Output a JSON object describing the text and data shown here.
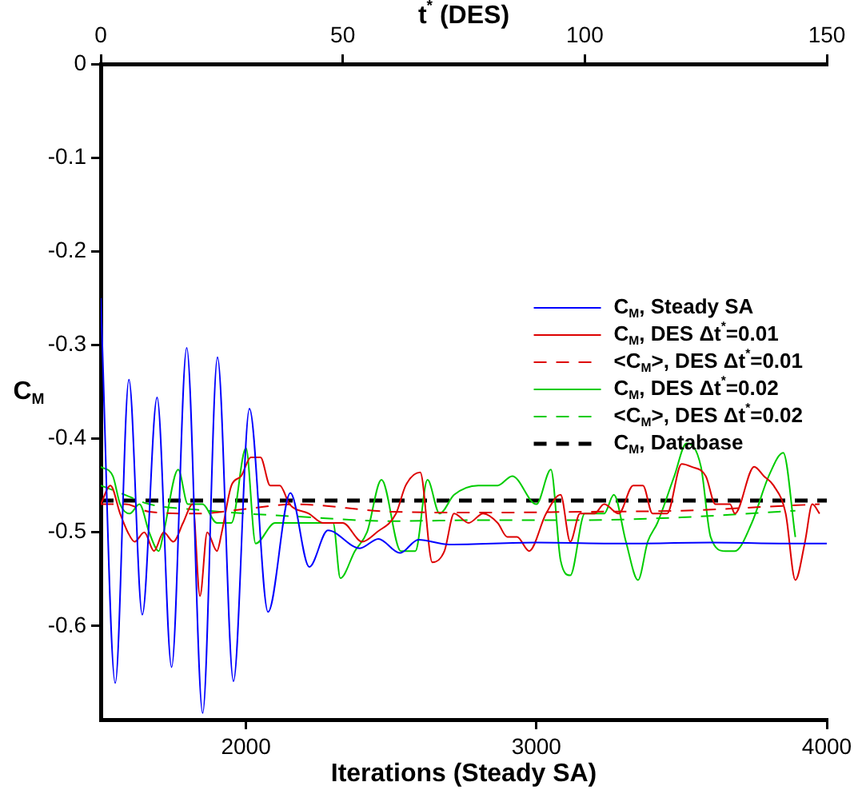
{
  "chart_data": {
    "type": "line",
    "xlabel": "Iterations (Steady SA)",
    "x2label": "t$^{*}$ (DES)",
    "ylabel": "C$_{M}$",
    "xlim": [
      1500,
      4000
    ],
    "xticks": [
      2000,
      3000,
      4000
    ],
    "x2lim": [
      0,
      150
    ],
    "x2ticks": [
      0,
      50,
      100,
      150
    ],
    "ylim": [
      -0.7,
      0
    ],
    "yticks": [
      0,
      -0.1,
      -0.2,
      -0.3,
      -0.4,
      -0.5,
      -0.6
    ],
    "grid": false,
    "legend": "right",
    "marker": "none",
    "series": [
      {
        "name": "C$_{M}$, Steady SA",
        "color": "#0000ff",
        "line_style": "solid",
        "x": [
          1500,
          1550,
          1597,
          1643,
          1694,
          1744,
          1796,
          1851,
          1902,
          1957,
          2012,
          2076,
          2153,
          2218,
          2282,
          2392,
          2456,
          2530,
          2594,
          2700,
          3000,
          3300,
          3600,
          3900,
          4000
        ],
        "values": [
          -0.25,
          -0.661,
          -0.337,
          -0.588,
          -0.356,
          -0.644,
          -0.303,
          -0.693,
          -0.313,
          -0.659,
          -0.368,
          -0.585,
          -0.458,
          -0.537,
          -0.498,
          -0.517,
          -0.507,
          -0.522,
          -0.508,
          -0.513,
          -0.511,
          -0.512,
          -0.511,
          -0.512,
          -0.512
        ]
      },
      {
        "name": "C$_{M}$, DES Δt$^{*}$=0.01",
        "color": "#dd0000",
        "line_style": "solid",
        "axis": "x2",
        "x": [
          0,
          2,
          4,
          5.6,
          7,
          9,
          11,
          13,
          15,
          17,
          19,
          20.5,
          22,
          24,
          25,
          27,
          29,
          31,
          33,
          35,
          37,
          39,
          43,
          46,
          50,
          54,
          57,
          61,
          63,
          66,
          68.5,
          71,
          73,
          76,
          79,
          82,
          84,
          86,
          88.5,
          92,
          95,
          97,
          99,
          102,
          104,
          107,
          110,
          112,
          114,
          117,
          120,
          122,
          125,
          127,
          130,
          131,
          135,
          137,
          139,
          141.5,
          143.5,
          145.5,
          147,
          148.5
        ],
        "values": [
          -0.47,
          -0.45,
          -0.48,
          -0.5,
          -0.51,
          -0.5,
          -0.52,
          -0.5,
          -0.51,
          -0.49,
          -0.47,
          -0.568,
          -0.5,
          -0.52,
          -0.5,
          -0.45,
          -0.44,
          -0.42,
          -0.42,
          -0.45,
          -0.45,
          -0.47,
          -0.48,
          -0.49,
          -0.49,
          -0.51,
          -0.5,
          -0.48,
          -0.45,
          -0.436,
          -0.532,
          -0.52,
          -0.48,
          -0.49,
          -0.48,
          -0.49,
          -0.505,
          -0.505,
          -0.52,
          -0.48,
          -0.46,
          -0.51,
          -0.48,
          -0.48,
          -0.47,
          -0.48,
          -0.45,
          -0.45,
          -0.48,
          -0.48,
          -0.427,
          -0.43,
          -0.44,
          -0.47,
          -0.47,
          -0.48,
          -0.43,
          -0.44,
          -0.45,
          -0.48,
          -0.551,
          -0.51,
          -0.47,
          -0.48
        ]
      },
      {
        "name": "<C$_{M}$>, DES Δt$^{*}$=0.01",
        "color": "#dd0000",
        "line_style": "dashed",
        "axis": "x2",
        "x": [
          0,
          5,
          10,
          20,
          30,
          40,
          60,
          80,
          100,
          120,
          140,
          148.5
        ],
        "values": [
          -0.47,
          -0.47,
          -0.478,
          -0.48,
          -0.475,
          -0.47,
          -0.478,
          -0.479,
          -0.478,
          -0.477,
          -0.472,
          -0.47
        ]
      },
      {
        "name": "C$_{M}$, DES Δt$^{*}$=0.02",
        "color": "#00cc00",
        "line_style": "solid",
        "axis": "x2",
        "x": [
          0,
          2.5,
          4,
          6,
          8,
          10,
          12,
          13,
          16,
          18,
          21,
          24,
          27,
          30,
          32,
          36,
          40,
          45,
          48,
          49.5,
          52.5,
          55,
          58,
          62,
          65,
          67.5,
          70,
          73,
          78,
          82,
          85,
          90,
          93,
          95,
          97,
          100,
          104,
          106,
          108.5,
          111,
          113,
          115,
          118.5,
          121,
          124,
          126,
          129,
          131,
          134.5,
          138,
          141,
          143.5
        ],
        "values": [
          -0.43,
          -0.44,
          -0.47,
          -0.48,
          -0.47,
          -0.5,
          -0.52,
          -0.5,
          -0.433,
          -0.47,
          -0.47,
          -0.49,
          -0.49,
          -0.41,
          -0.512,
          -0.49,
          -0.49,
          -0.49,
          -0.49,
          -0.549,
          -0.52,
          -0.5,
          -0.444,
          -0.52,
          -0.52,
          -0.444,
          -0.48,
          -0.46,
          -0.45,
          -0.45,
          -0.44,
          -0.47,
          -0.433,
          -0.53,
          -0.546,
          -0.48,
          -0.48,
          -0.46,
          -0.51,
          -0.551,
          -0.51,
          -0.49,
          -0.44,
          -0.405,
          -0.43,
          -0.505,
          -0.52,
          -0.52,
          -0.49,
          -0.44,
          -0.415,
          -0.505
        ]
      },
      {
        "name": "<C$_{M}$>, DES Δt$^{*}$=0.02",
        "color": "#00cc00",
        "line_style": "dashed",
        "axis": "x2",
        "x": [
          0,
          5,
          10,
          20,
          30,
          40,
          60,
          80,
          100,
          120,
          140,
          143.5
        ],
        "values": [
          -0.45,
          -0.46,
          -0.47,
          -0.476,
          -0.48,
          -0.483,
          -0.488,
          -0.487,
          -0.487,
          -0.484,
          -0.478,
          -0.477
        ]
      },
      {
        "name": "C$_{M}$, Database",
        "color": "#000000",
        "line_style": "dashed",
        "x": [
          1500,
          4000
        ],
        "values": [
          -0.466,
          -0.466
        ]
      }
    ]
  }
}
